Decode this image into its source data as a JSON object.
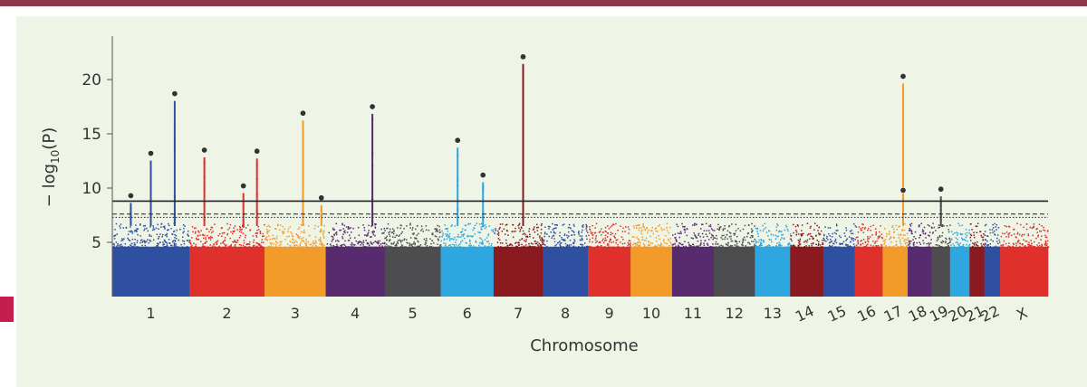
{
  "chart_data": {
    "type": "scatter",
    "subtype": "manhattan",
    "xlabel": "Chromosome",
    "ylabel_parts": {
      "prefix": "− log",
      "sub": "10",
      "suffix": "(P)"
    },
    "ylim": [
      0,
      24
    ],
    "yticks": [
      5,
      10,
      15,
      20
    ],
    "yticks_labels": [
      "5",
      "10",
      "15",
      "20"
    ],
    "thresholds": [
      {
        "value": 8.8,
        "style": "solid"
      },
      {
        "value": 7.6,
        "style": "dashed"
      },
      {
        "value": 7.3,
        "style": "dotted"
      }
    ],
    "chromosomes": [
      {
        "label": "1",
        "color": "#2f4fa0",
        "peaks": [
          {
            "pos": 0.24,
            "y": 9.3
          },
          {
            "pos": 0.5,
            "y": 13.2
          },
          {
            "pos": 0.81,
            "y": 18.7
          }
        ]
      },
      {
        "label": "2",
        "color": "#e0302c",
        "peaks": [
          {
            "pos": 0.2,
            "y": 13.5
          },
          {
            "pos": 0.72,
            "y": 10.2
          },
          {
            "pos": 0.9,
            "y": 13.4
          }
        ]
      },
      {
        "label": "3",
        "color": "#f29a2a",
        "peaks": [
          {
            "pos": 0.63,
            "y": 16.9
          },
          {
            "pos": 0.93,
            "y": 9.1
          }
        ]
      },
      {
        "label": "4",
        "color": "#582b6e",
        "peaks": [
          {
            "pos": 0.79,
            "y": 17.5
          }
        ]
      },
      {
        "label": "5",
        "color": "#4d4d4f",
        "peaks": []
      },
      {
        "label": "6",
        "color": "#2ea6df",
        "peaks": [
          {
            "pos": 0.32,
            "y": 14.4
          },
          {
            "pos": 0.8,
            "y": 11.2
          }
        ]
      },
      {
        "label": "7",
        "color": "#8a1a1f",
        "peaks": [
          {
            "pos": 0.6,
            "y": 22.1
          }
        ]
      },
      {
        "label": "8",
        "color": "#2f4fa0",
        "peaks": []
      },
      {
        "label": "9",
        "color": "#e0302c",
        "peaks": []
      },
      {
        "label": "10",
        "color": "#f29a2a",
        "peaks": []
      },
      {
        "label": "11",
        "color": "#582b6e",
        "peaks": []
      },
      {
        "label": "12",
        "color": "#4d4d4f",
        "peaks": []
      },
      {
        "label": "13",
        "color": "#2ea6df",
        "peaks": []
      },
      {
        "label": "14",
        "color": "#8a1a1f",
        "peaks": []
      },
      {
        "label": "15",
        "color": "#2f4fa0",
        "peaks": []
      },
      {
        "label": "16",
        "color": "#e0302c",
        "peaks": []
      },
      {
        "label": "17",
        "color": "#f29a2a",
        "peaks": [
          {
            "pos": 0.82,
            "y": 20.3
          },
          {
            "pos": 0.82,
            "y": 9.8
          }
        ]
      },
      {
        "label": "18",
        "color": "#582b6e",
        "peaks": []
      },
      {
        "label": "19",
        "color": "#4d4d4f",
        "peaks": [
          {
            "pos": 0.5,
            "y": 9.9
          }
        ]
      },
      {
        "label": "20",
        "color": "#2ea6df",
        "peaks": []
      },
      {
        "label": "21",
        "color": "#8a1a1f",
        "peaks": []
      },
      {
        "label": "22",
        "color": "#2f4fa0",
        "peaks": []
      },
      {
        "label": "X",
        "color": "#e0302c",
        "peaks": []
      }
    ]
  },
  "theme": {
    "topbar": "#8c3a4a",
    "panel": "#eef4e6",
    "tab": "#c41d4f"
  }
}
